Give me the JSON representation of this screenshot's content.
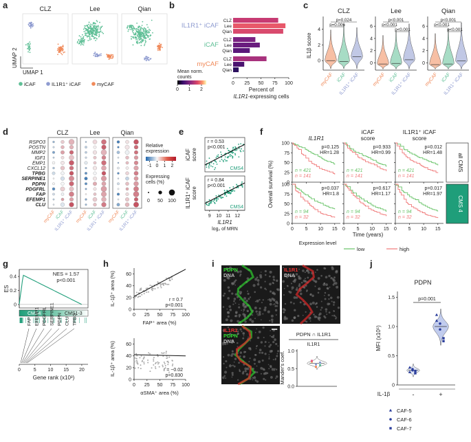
{
  "panel_labels": [
    "a",
    "b",
    "c",
    "d",
    "e",
    "f",
    "g",
    "h",
    "i",
    "j"
  ],
  "a": {
    "titles": [
      "CLZ",
      "Lee",
      "Qian"
    ],
    "xlabel": "UMAP 1",
    "ylabel": "UMAP 2",
    "legend": [
      {
        "name": "iCAF",
        "color": "#5fbf96"
      },
      {
        "name": "IL1R1⁺ iCAF",
        "color": "#8e9bd0"
      },
      {
        "name": "myCAF",
        "color": "#f08a5a"
      }
    ]
  },
  "chart_data": [
    {
      "type": "bar",
      "orientation": "horizontal",
      "groups": [
        {
          "name": "IL1R1⁺ iCAF",
          "color": "#8e9bd0",
          "categories": [
            "CLZ",
            "Lee",
            "Qian"
          ],
          "values": [
            81,
            94,
            90
          ],
          "colors": [
            "#c73b73",
            "#e8586a",
            "#d94a6d"
          ]
        },
        {
          "name": "iCAF",
          "color": "#5fbf96",
          "categories": [
            "CLZ",
            "Lee",
            "Qian"
          ],
          "values": [
            40,
            48,
            30
          ],
          "colors": [
            "#7b2382",
            "#6a1d7e",
            "#5a187a"
          ]
        },
        {
          "name": "myCAF",
          "color": "#f08a5a",
          "categories": [
            "CLZ",
            "Lee",
            "Qian"
          ],
          "values": [
            60,
            20,
            10
          ],
          "colors": [
            "#a8327d",
            "#4b1470",
            "#2c115f"
          ]
        }
      ],
      "xlim": [
        0,
        100
      ],
      "xticks": [
        0,
        25,
        50,
        75,
        100
      ],
      "xlabel": [
        "Percent of",
        "IL1R1",
        "-expressing cells"
      ],
      "colorbar": {
        "title": [
          "Mean norm.",
          "counts"
        ],
        "clim": [
          0,
          2.4
        ],
        "ticks": [
          0,
          1,
          2
        ]
      }
    }
  ],
  "c": {
    "titles": [
      "CLZ",
      "Lee",
      "Qian"
    ],
    "ylabel": "IL1β score",
    "categories": [
      {
        "name": "myCAF",
        "color": "#f08a5a"
      },
      {
        "name": "iCAF",
        "color": "#5fbf96"
      },
      {
        "name": "IL1R1⁺ iCAF",
        "color": "#8e9bd0"
      }
    ],
    "yticks": [
      [
        0,
        2,
        4
      ],
      [
        0,
        2,
        4,
        6
      ],
      [
        0,
        2,
        4,
        6
      ]
    ],
    "ylims": [
      [
        -1.2,
        5.6
      ],
      [
        -1.2,
        7.6
      ],
      [
        -1.2,
        7.6
      ]
    ],
    "pvalues": [
      [
        "p=0.024",
        "p=0.006"
      ],
      [
        "p<0.001",
        "p<0.001",
        "p<0.001"
      ],
      [
        "p<0.001",
        "p<0.001",
        "p<0.001"
      ]
    ]
  },
  "d": {
    "genes": [
      "RSPO3",
      "POSTN",
      "MMP2",
      "IGF1",
      "EMP1",
      "CXCL12",
      "TPBG",
      "SERPINE1",
      "PDPN",
      "PDGFRL",
      "FAP",
      "EFEMP1",
      "CLU"
    ],
    "gene_bold": [
      false,
      false,
      false,
      false,
      false,
      false,
      true,
      true,
      true,
      true,
      true,
      true,
      true
    ],
    "titles": [
      "CLZ",
      "Lee",
      "Qian"
    ],
    "categories": [
      {
        "name": "myCAF",
        "color": "#f08a5a"
      },
      {
        "name": "iCAF",
        "color": "#5fbf96"
      },
      {
        "name": "IL1R1⁺ iCAF",
        "color": "#8e9bd0"
      }
    ],
    "color_title": [
      "Relative",
      "expression"
    ],
    "color_lim": [
      -1.5,
      2.5
    ],
    "color_ticks": [
      -1,
      0,
      1,
      2
    ],
    "size_title": [
      "Expressing",
      "cells (%)"
    ],
    "size_ticks": [
      0,
      50,
      100
    ]
  },
  "e": {
    "plots": [
      {
        "ylabel": [
          "iCAF",
          "score"
        ],
        "stats": [
          "r = 0.53",
          "p<0.001"
        ],
        "tag": "CMS4"
      },
      {
        "ylabel": [
          "IL1R1⁺ iCAF",
          "score"
        ],
        "stats": [
          "r = 0.84",
          "p<0.001"
        ],
        "tag": "CMS4"
      }
    ],
    "xlim": [
      8.5,
      12.8
    ],
    "xticks": [
      9,
      10,
      11,
      12
    ],
    "xlabel": [
      "IL1R1",
      "log₂ of MRN"
    ]
  },
  "f": {
    "titles": [
      [
        "IL1R1"
      ],
      [
        "iCAF",
        "score"
      ],
      [
        "IL1R1⁺ iCAF",
        "score"
      ]
    ],
    "rows": [
      "all CMS",
      "CMS 4"
    ],
    "stats": [
      [
        [
          "p=0.125",
          "HR=1.28"
        ],
        [
          "p=0.933",
          "HR=0.99"
        ],
        [
          "p=0.012",
          "HR=1.48"
        ]
      ],
      [
        [
          "p=0.037",
          "HR=1.8"
        ],
        [
          "p=0.617",
          "HR=1.17"
        ],
        [
          "p=0.017",
          "HR=1.97"
        ]
      ]
    ],
    "n": [
      [
        [
          "n = 421",
          "n = 141"
        ],
        [
          "n = 421",
          "n = 141"
        ],
        [
          "n = 421",
          "n = 141"
        ]
      ],
      [
        [
          "n = 94",
          "n = 32"
        ],
        [
          "n = 94",
          "n = 32"
        ],
        [
          "n = 94",
          "n = 32"
        ]
      ]
    ],
    "ylabel": "Overall survival (%)",
    "ylim": [
      0,
      100
    ],
    "yticks": [
      0,
      25,
      50,
      75,
      100
    ],
    "xlim": [
      0,
      17
    ],
    "xticks": [
      0,
      5,
      10,
      15
    ],
    "xlabel": "Time (years)",
    "legend": {
      "title": "Expression level",
      "items": [
        {
          "name": "low",
          "color": "#66c266"
        },
        {
          "name": "high",
          "color": "#f07878"
        }
      ]
    }
  },
  "g": {
    "ylabel": "ES",
    "stats": [
      "NES = 1.57",
      "p<0.001"
    ],
    "ylim": [
      -0.05,
      0.5
    ],
    "yticks": [
      0,
      0.2,
      0.4
    ],
    "classes": [
      "CMS4",
      "CMS1-3"
    ],
    "genes": [
      "FAP",
      "EFEMP1",
      "PDGFRL",
      "SERPINE1",
      "PDPN",
      "CLU",
      "TPBG"
    ],
    "xlim": [
      0,
      22
    ],
    "xticks": [
      0,
      5,
      10,
      15,
      20
    ],
    "xlabel": "Gene rank (x10³)"
  },
  "h": {
    "plots": [
      {
        "ylabel": "IL-1β⁺ area (%)",
        "xlabel": "FAP⁺ area (%)",
        "stats": [
          "r = 0.7",
          "p<0.001"
        ]
      },
      {
        "ylabel": "IL-1β⁺ area (%)",
        "xlabel": "αSMA⁺ area (%)",
        "stats": [
          "r = −0.02",
          "p=0.830"
        ]
      }
    ],
    "xlim": [
      0,
      100
    ],
    "xticks": [
      0,
      25,
      50,
      75,
      100
    ],
    "ylim": [
      0,
      70
    ],
    "yticks": [
      0,
      20,
      40,
      60
    ]
  },
  "i": {
    "images": [
      [
        {
          "text": "PDPN",
          "color": "#33dd33"
        },
        {
          "text": "DNA",
          "color": "#bbbbbb"
        }
      ],
      [
        {
          "text": "IL1R1",
          "color": "#ee3333"
        },
        {
          "text": "DNA",
          "color": "#bbbbbb"
        }
      ],
      [
        {
          "text": "IL1R1",
          "color": "#ee3333"
        },
        {
          "text": "PDPN",
          "color": "#33dd33"
        },
        {
          "text": "DNA",
          "color": "#bbbbbb"
        }
      ]
    ],
    "title": "PDPN ∩ IL1R1",
    "group": "IL1R1",
    "ylabel": "Mander's coef.",
    "ylim": [
      0,
      1.05
    ],
    "yticks": [
      {
        "value": 0,
        "label": "0.0"
      },
      0.5,
      {
        "value": 1,
        "label": "1.0"
      }
    ]
  },
  "j": {
    "title": "PDPN",
    "ylabel": "MFI (x10⁵)",
    "ylim": [
      0,
      1.6
    ],
    "yticks": [
      0,
      0.5,
      {
        "value": 1,
        "label": "1.0"
      },
      1.5
    ],
    "pvalue": "p=0.001",
    "xlabel": "IL-1β",
    "conditions": [
      "-",
      "+"
    ],
    "legend": [
      "CAF-5",
      "CAF-6",
      "CAF-7"
    ]
  }
}
